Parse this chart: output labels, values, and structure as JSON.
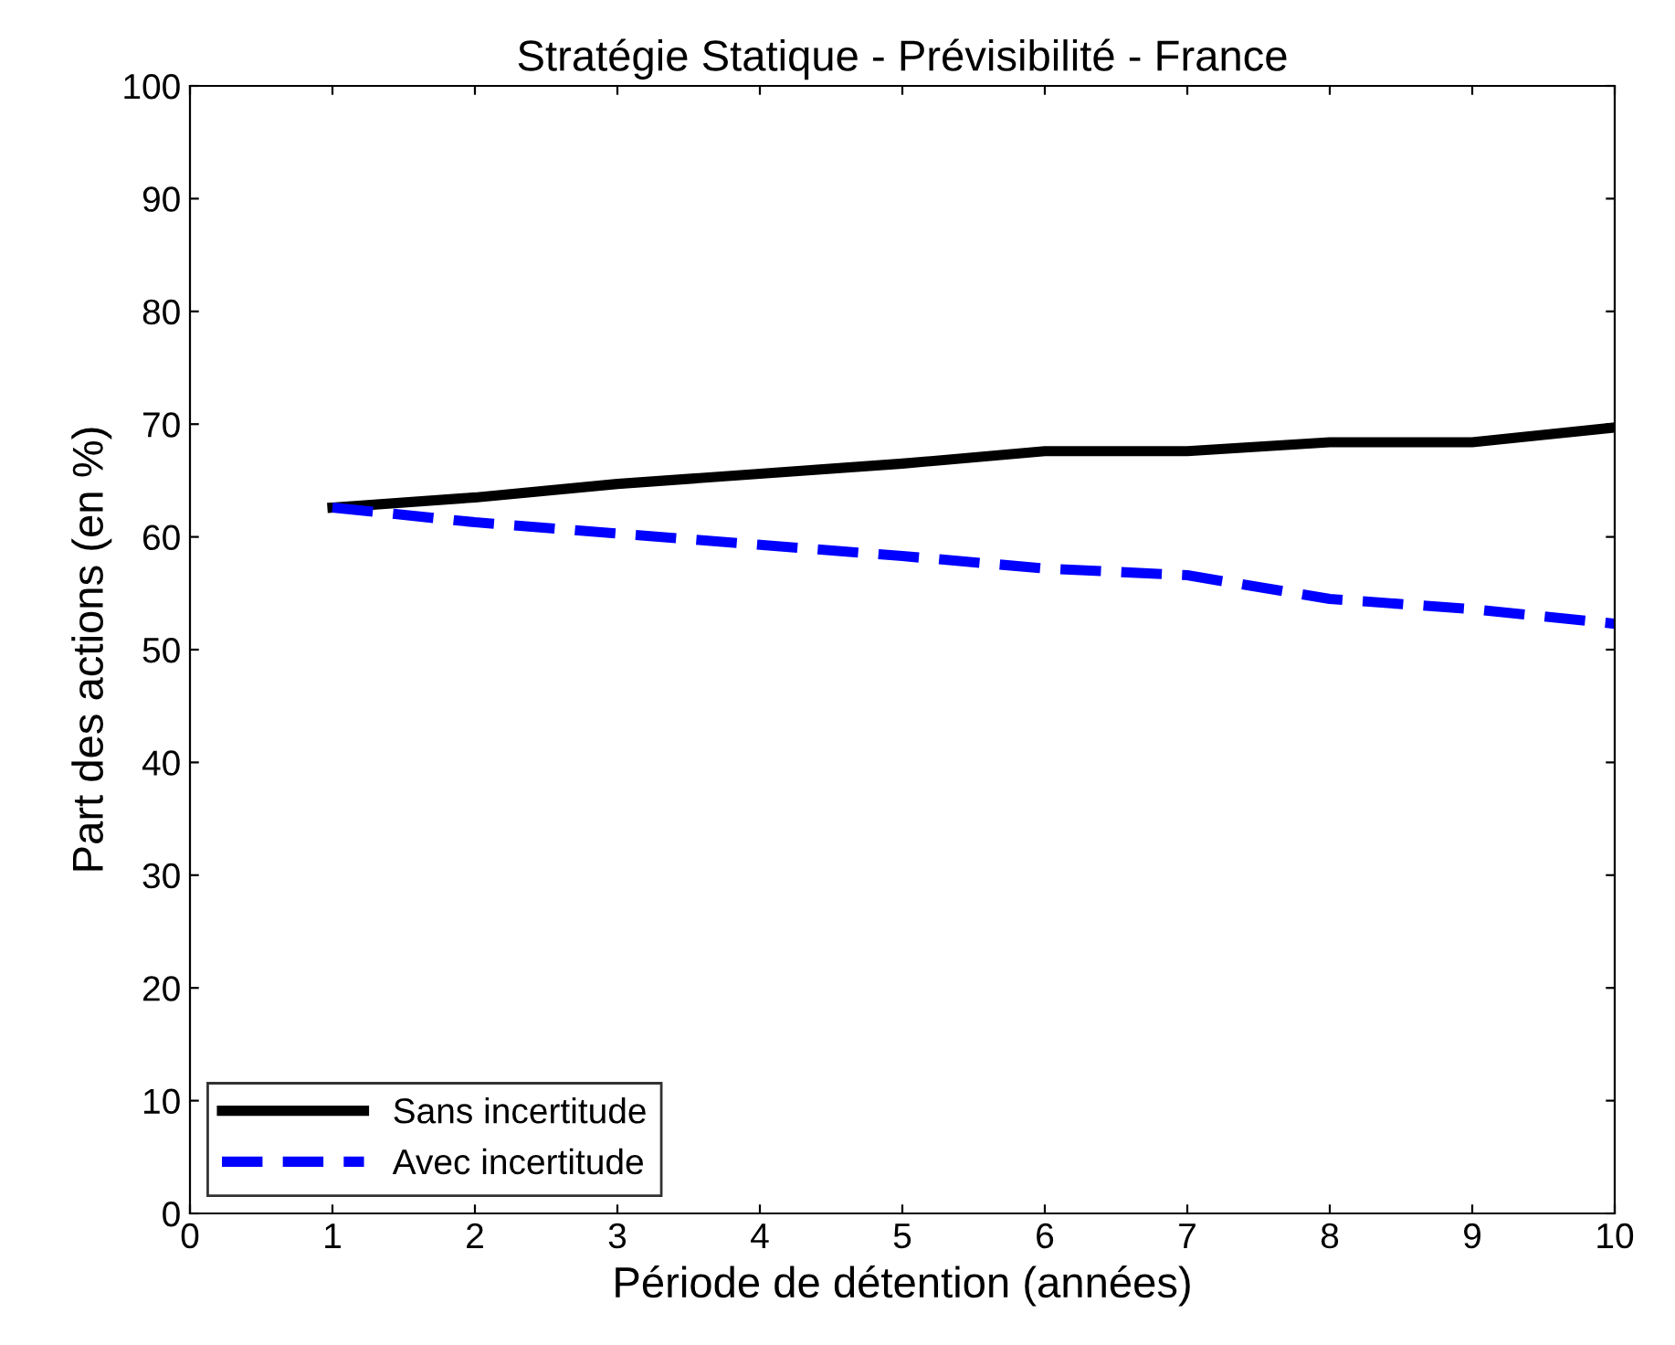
{
  "chart_data": {
    "type": "line",
    "title": "Stratégie Statique - Prévisibilité - France",
    "xlabel": "Période de détention (années)",
    "ylabel": "Part des actions (en %)",
    "x": [
      1,
      2,
      3,
      4,
      5,
      6,
      7,
      8,
      9,
      10
    ],
    "series": [
      {
        "name": "Sans incertitude",
        "color": "#000000",
        "line_style": "solid",
        "values": [
          62.6,
          63.5,
          64.7,
          65.6,
          66.5,
          67.6,
          67.6,
          68.4,
          68.4,
          69.7
        ]
      },
      {
        "name": "Avec incertitude",
        "color": "#0000ff",
        "line_style": "dashed",
        "values": [
          62.6,
          61.3,
          60.3,
          59.3,
          58.3,
          57.2,
          56.6,
          54.5,
          53.6,
          52.3
        ]
      }
    ],
    "xlim": [
      0,
      10
    ],
    "xticks": [
      0,
      1,
      2,
      3,
      4,
      5,
      6,
      7,
      8,
      9,
      10
    ],
    "ylim": [
      0,
      100
    ],
    "yticks": [
      0,
      10,
      20,
      30,
      40,
      50,
      60,
      70,
      80,
      90,
      100
    ],
    "grid": false,
    "legend": "bottom left",
    "marker": "none"
  }
}
